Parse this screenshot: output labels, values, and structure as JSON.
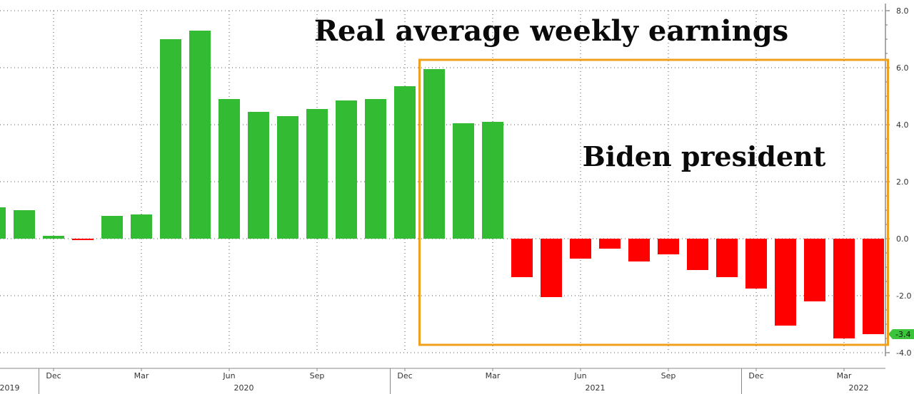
{
  "chart_data": {
    "type": "bar",
    "title": "Real average weekly earnings",
    "annotation": "Biden president",
    "xlabel": "",
    "ylabel": "",
    "ylim": [
      -4.0,
      8.0
    ],
    "yticks": [
      "8.0",
      "6.0",
      "4.0",
      "2.0",
      "0.0",
      "-2.0",
      "-4.0"
    ],
    "ytick_values": [
      8,
      6,
      4,
      2,
      0,
      -2,
      -4
    ],
    "grid": true,
    "legend": "none",
    "last_value_label": "-3.4",
    "colors": {
      "positive": "#33bb33",
      "negative": "#ff0000",
      "box": "#f0a01e",
      "last_label_bg": "#3bc43b"
    },
    "categories": [
      "2019-10",
      "2019-11",
      "2019-12",
      "2020-01",
      "2020-02",
      "2020-03",
      "2020-04",
      "2020-05",
      "2020-06",
      "2020-07",
      "2020-08",
      "2020-09",
      "2020-10",
      "2020-11",
      "2020-12",
      "2021-01",
      "2021-02",
      "2021-03",
      "2021-04",
      "2021-05",
      "2021-06",
      "2021-07",
      "2021-08",
      "2021-09",
      "2021-10",
      "2021-11",
      "2021-12",
      "2022-01",
      "2022-02",
      "2022-03",
      "2022-04"
    ],
    "values": [
      1.1,
      1.0,
      0.1,
      -0.05,
      0.8,
      0.85,
      7.0,
      7.3,
      4.9,
      4.45,
      4.3,
      4.55,
      4.85,
      4.9,
      5.35,
      5.95,
      4.05,
      4.1,
      -1.35,
      -2.05,
      -0.7,
      -0.35,
      -0.8,
      -0.55,
      -1.1,
      -1.35,
      -1.75,
      -3.05,
      -2.2,
      -3.5,
      -3.35
    ],
    "x_month_labels": [
      "Dec",
      "Mar",
      "Jun",
      "Sep",
      "Dec",
      "Mar",
      "Jun",
      "Sep",
      "Dec",
      "Mar"
    ],
    "x_month_label_indices": [
      2,
      5,
      8,
      11,
      14,
      17,
      20,
      23,
      26,
      29
    ],
    "x_year_labels": [
      "2019",
      "2020",
      "2021",
      "2022"
    ],
    "x_year_label_centers": [
      0.5,
      8.5,
      20.5,
      29.5
    ],
    "x_year_separators": [
      1.5,
      13.5,
      25.5
    ],
    "box_range": [
      14.5,
      30.5
    ]
  }
}
